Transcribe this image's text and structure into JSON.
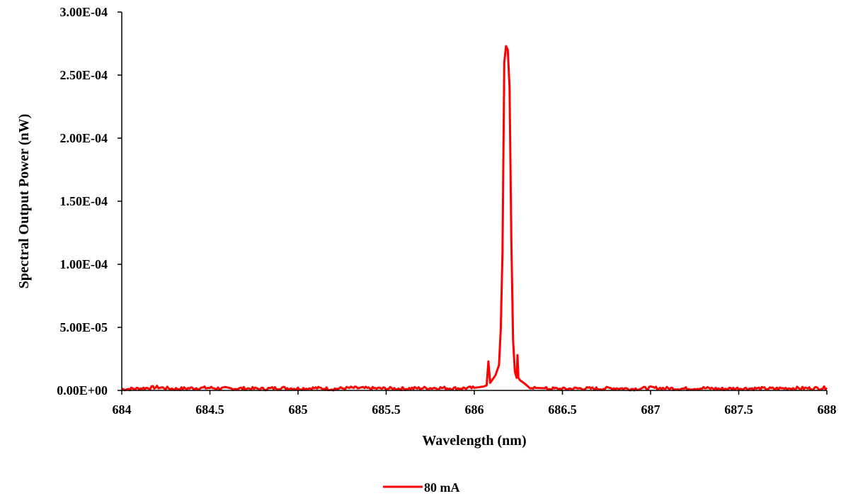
{
  "chart_data": {
    "type": "line",
    "xlabel": "Wavelength (nm)",
    "ylabel": "Spectral Output Power (nW)",
    "xlim": [
      684,
      688
    ],
    "ylim": [
      0,
      0.0003
    ],
    "x_ticks": [
      "684",
      "684.5",
      "685",
      "685.5",
      "686",
      "686.5",
      "687",
      "687.5",
      "688"
    ],
    "y_ticks": [
      "0.00E+00",
      "5.00E-05",
      "1.00E-04",
      "1.50E-04",
      "2.00E-04",
      "2.50E-04",
      "3.00E-04"
    ],
    "grid": false,
    "legend_position": "bottom-center",
    "series": [
      {
        "name": "80 mA",
        "color": "#ff0000",
        "x": [
          684.0,
          684.1,
          684.2,
          684.3,
          684.4,
          684.5,
          684.6,
          684.7,
          684.8,
          684.9,
          685.0,
          685.1,
          685.2,
          685.3,
          685.4,
          685.5,
          685.6,
          685.7,
          685.8,
          685.9,
          686.0,
          686.05,
          686.07,
          686.08,
          686.09,
          686.1,
          686.12,
          686.14,
          686.15,
          686.16,
          686.17,
          686.18,
          686.19,
          686.2,
          686.21,
          686.22,
          686.23,
          686.24,
          686.245,
          686.25,
          686.26,
          686.28,
          686.3,
          686.35,
          686.4,
          686.5,
          686.6,
          686.7,
          686.8,
          686.9,
          687.0,
          687.1,
          687.2,
          687.3,
          687.4,
          687.5,
          687.6,
          687.7,
          687.8,
          687.9,
          688.0
        ],
        "values": [
          1e-06,
          1.5e-06,
          2.5e-06,
          1.2e-06,
          1.8e-06,
          2e-06,
          1.4e-06,
          1.6e-06,
          1.2e-06,
          2e-06,
          1.5e-06,
          1.8e-06,
          1.2e-06,
          2e-06,
          1.6e-06,
          1.5e-06,
          1.4e-06,
          1.8e-06,
          2e-06,
          1.6e-06,
          2e-06,
          3e-06,
          4e-06,
          2.3e-05,
          6e-06,
          8e-06,
          1.2e-05,
          2e-05,
          4.8e-05,
          0.00011,
          0.00026,
          0.000273,
          0.00027,
          0.00024,
          0.00012,
          4e-05,
          1.5e-05,
          1e-05,
          2.8e-05,
          1e-05,
          8e-06,
          6e-06,
          3e-06,
          2e-06,
          1.5e-06,
          1.2e-06,
          1.6e-06,
          1.4e-06,
          1.8e-06,
          1.2e-06,
          2e-06,
          1.6e-06,
          1.4e-06,
          1.8e-06,
          1.2e-06,
          1.6e-06,
          1.5e-06,
          1.4e-06,
          1.8e-06,
          1.6e-06,
          2e-06
        ]
      }
    ]
  }
}
